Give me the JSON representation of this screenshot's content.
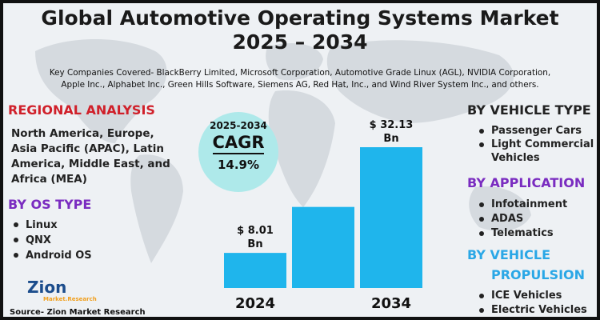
{
  "header": {
    "title_line1": "Global Automotive Operating Systems Market",
    "title_line2": "2025 – 2034",
    "companies_line1": "Key Companies Covered- BlackBerry Limited, Microsoft Corporation, Automotive Grade Linux (AGL), NVIDIA Corporation,",
    "companies_line2": "Apple Inc., Alphabet Inc., Green Hills Software, Siemens AG, Red Hat, Inc., and Wind River System Inc., and others."
  },
  "regional": {
    "heading": "REGIONAL ANALYSIS",
    "text": "North America, Europe, Asia Pacific (APAC), Latin America, Middle East, and Africa (MEA)"
  },
  "os_type": {
    "heading": "BY OS TYPE",
    "items": [
      "Linux",
      "QNX",
      "Android OS"
    ]
  },
  "vehicle_type": {
    "heading": "BY VEHICLE TYPE",
    "items": [
      "Passenger Cars",
      "Light Commercial Vehicles"
    ]
  },
  "application": {
    "heading": "BY APPLICATION",
    "items": [
      "Infotainment",
      "ADAS",
      "Telematics"
    ]
  },
  "propulsion": {
    "heading_line1": "BY VEHICLE",
    "heading_line2": "PROPULSION",
    "items": [
      "ICE Vehicles",
      "Electric Vehicles"
    ]
  },
  "cagr": {
    "years": "2025-2034",
    "label": "CAGR",
    "value": "14.9%"
  },
  "logo": {
    "name": "Zion",
    "sub": "Market.Research"
  },
  "source": "Source- Zion Market Research",
  "colors": {
    "bar": "#1fb5ec",
    "regional_heading": "#d0202a",
    "os_heading": "#7a2cc0",
    "application_heading": "#7a2cc0",
    "propulsion_heading": "#2aa7e6",
    "cagr_circle": "#aee9ea"
  },
  "chart_data": {
    "type": "bar",
    "categories": [
      "2024",
      "",
      "2034"
    ],
    "values": [
      8.01,
      18.5,
      32.13
    ],
    "data_labels": [
      [
        "$ 8.01",
        "Bn"
      ],
      [
        "",
        ""
      ],
      [
        "$ 32.13",
        "Bn"
      ]
    ],
    "unit": "Bn",
    "ylim": [
      0,
      32.13
    ],
    "grid": false,
    "legend": "none"
  }
}
